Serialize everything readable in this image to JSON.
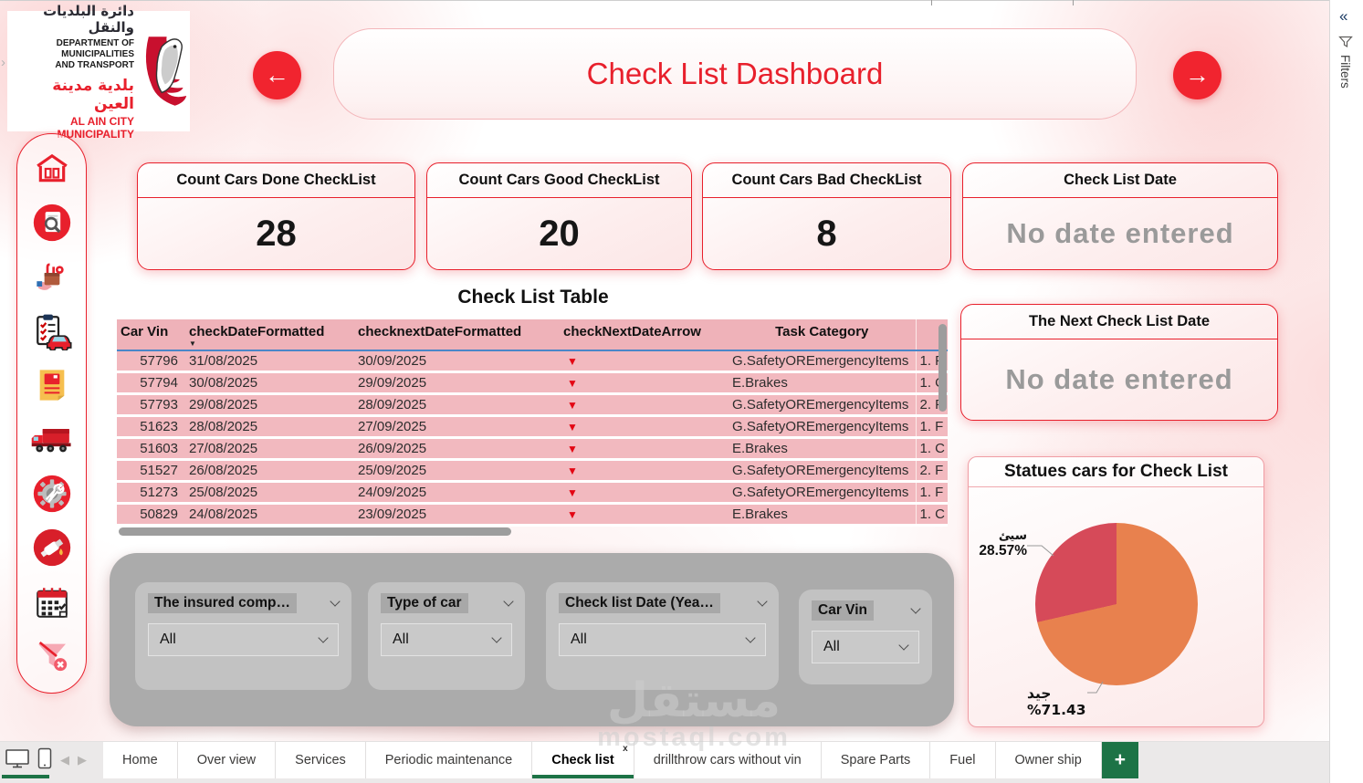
{
  "header": {
    "title": "Check List Dashboard",
    "back_glyph": "←",
    "forward_glyph": "→"
  },
  "logo": {
    "arabic_title": "دائرة البلديات والنقل",
    "english_title_line1": "DEPARTMENT OF MUNICIPALITIES",
    "english_title_line2": "AND TRANSPORT",
    "arabic_subtitle": "بلدية مدينة العين",
    "english_subtitle": "AL AIN CITY MUNICIPALITY"
  },
  "sidebar": {
    "icons": [
      "home-icon",
      "search-report-icon",
      "services-box-icon",
      "car-checklist-icon",
      "report-icon",
      "truck-icon",
      "maintenance-gear-icon",
      "fuel-icon",
      "calendar-icon",
      "clear-filter-icon"
    ]
  },
  "kpis": [
    {
      "title": "Count Cars Done CheckList",
      "value": "28"
    },
    {
      "title": "Count Cars Good CheckList",
      "value": "20"
    },
    {
      "title": "Count Cars Bad CheckList",
      "value": "8"
    },
    {
      "title": "Check List Date",
      "value": "No date entered"
    }
  ],
  "next_card": {
    "title": "The Next Check List Date",
    "value": "No date entered"
  },
  "table": {
    "title": "Check List Table",
    "columns": [
      "Car Vin",
      "checkDateFormatted",
      "checknextDateFormatted",
      "checkNextDateArrow",
      "Task Category",
      ""
    ],
    "sort_column": "checkDateFormatted",
    "sort_glyph": "▼",
    "rows": [
      [
        "57796",
        "31/08/2025",
        "30/09/2025",
        "▼",
        "G.SafetyOREmergencyItems",
        "1. F"
      ],
      [
        "57794",
        "30/08/2025",
        "29/09/2025",
        "▼",
        "E.Brakes",
        "1. C"
      ],
      [
        "57793",
        "29/08/2025",
        "28/09/2025",
        "▼",
        "G.SafetyOREmergencyItems",
        "2. F"
      ],
      [
        "51623",
        "28/08/2025",
        "27/09/2025",
        "▼",
        "G.SafetyOREmergencyItems",
        "1. F"
      ],
      [
        "51603",
        "27/08/2025",
        "26/09/2025",
        "▼",
        "E.Brakes",
        "1. C"
      ],
      [
        "51527",
        "26/08/2025",
        "25/09/2025",
        "▼",
        "G.SafetyOREmergencyItems",
        "2. F"
      ],
      [
        "51273",
        "25/08/2025",
        "24/09/2025",
        "▼",
        "G.SafetyOREmergencyItems",
        "1. F"
      ],
      [
        "50829",
        "24/08/2025",
        "23/09/2025",
        "▼",
        "E.Brakes",
        "1. C"
      ]
    ]
  },
  "chart_data": {
    "type": "pie",
    "title": "Statues cars for Check List",
    "start": "12-oclock",
    "direction": "clockwise",
    "slices": [
      {
        "label": "جيد",
        "pct_label": "71.43%",
        "value": 71.43,
        "color": "#E8814E"
      },
      {
        "label": "سيئ",
        "pct_label": "28.57%",
        "value": 28.57,
        "color": "#D64A59"
      }
    ]
  },
  "slicers": {
    "items": [
      {
        "label": "The insured comp…",
        "value": "All"
      },
      {
        "label": "Type of car",
        "value": "All"
      },
      {
        "label": "Check list Date (Yea…",
        "value": "All"
      },
      {
        "label": "Car Vin",
        "value": "All"
      }
    ]
  },
  "tabs": {
    "items": [
      {
        "label": "Home"
      },
      {
        "label": "Over view"
      },
      {
        "label": "Services"
      },
      {
        "label": "Periodic maintenance"
      },
      {
        "label": "Check list",
        "active": true,
        "badge": "x"
      },
      {
        "label": "drillthrow cars without vin"
      },
      {
        "label": "Spare Parts"
      },
      {
        "label": "Fuel"
      },
      {
        "label": "Owner ship"
      }
    ],
    "add_label": "+"
  },
  "filters_rail": {
    "collapse_glyph": "«",
    "label": "Filters"
  },
  "watermark": {
    "arabic": "مستقل",
    "domain": "mostaql.com"
  }
}
